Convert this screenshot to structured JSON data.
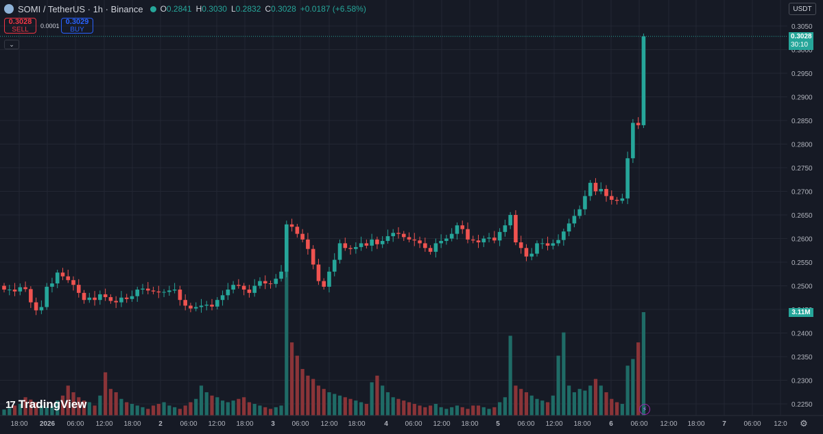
{
  "header": {
    "symbol": "SOMI / TetherUS · 1h · Binance",
    "ohlc": [
      {
        "k": "O",
        "v": "0.2841"
      },
      {
        "k": "H",
        "v": "0.3030"
      },
      {
        "k": "L",
        "v": "0.2832"
      },
      {
        "k": "C",
        "v": "0.3028"
      }
    ],
    "change": "+0.0187 (+6.58%)"
  },
  "trade": {
    "sell_price": "0.3028",
    "sell_label": "SELL",
    "buy_price": "0.3029",
    "buy_label": "BUY",
    "spread": "0.0001"
  },
  "currency": "USDT",
  "price_tag": {
    "price": "0.3028",
    "countdown": "30:10"
  },
  "volume_tag": "3.11M",
  "brand": "TradingView",
  "colors": {
    "up": "#26a69a",
    "down": "#ef5350",
    "vol_up": "#1f6b66",
    "vol_down": "#8a3438",
    "grid": "#232733",
    "text": "#b2b5be"
  },
  "chart_data": {
    "type": "candlestick",
    "interval": "1h",
    "y_ticks": [
      "0.3050",
      "0.3000",
      "0.2950",
      "0.2900",
      "0.2850",
      "0.2800",
      "0.2750",
      "0.2700",
      "0.2650",
      "0.2600",
      "0.2550",
      "0.2500",
      "0.2450",
      "0.2400",
      "0.2350",
      "0.2300",
      "0.2250"
    ],
    "ylim": [
      0.2225,
      0.3075
    ],
    "x_ticks": [
      "18:00",
      "2026",
      "06:00",
      "12:00",
      "18:00",
      "2",
      "06:00",
      "12:00",
      "18:00",
      "3",
      "06:00",
      "12:00",
      "18:00",
      "4",
      "06:00",
      "12:00",
      "18:00",
      "5",
      "06:00",
      "12:00",
      "18:00",
      "6",
      "06:00",
      "12:00",
      "18:00",
      "7",
      "06:00",
      "12:0"
    ],
    "last_price": 0.3028,
    "closes": [
      0.2492,
      0.2492,
      0.2488,
      0.2497,
      0.2493,
      0.2465,
      0.2448,
      0.2455,
      0.2498,
      0.2505,
      0.2528,
      0.252,
      0.2512,
      0.2502,
      0.2485,
      0.247,
      0.2475,
      0.247,
      0.2482,
      0.2476,
      0.2468,
      0.2465,
      0.2475,
      0.2472,
      0.2478,
      0.2492,
      0.2494,
      0.249,
      0.2488,
      0.2486,
      0.2487,
      0.249,
      0.2492,
      0.247,
      0.2458,
      0.2452,
      0.2455,
      0.2458,
      0.246,
      0.2456,
      0.247,
      0.248,
      0.2492,
      0.2502,
      0.25,
      0.2492,
      0.2485,
      0.25,
      0.251,
      0.2505,
      0.2504,
      0.2515,
      0.253,
      0.263,
      0.2625,
      0.261,
      0.2598,
      0.2578,
      0.2545,
      0.251,
      0.2498,
      0.253,
      0.2555,
      0.259,
      0.258,
      0.2578,
      0.2582,
      0.259,
      0.2585,
      0.2598,
      0.2588,
      0.2595,
      0.2605,
      0.2612,
      0.261,
      0.2603,
      0.2598,
      0.2596,
      0.259,
      0.258,
      0.2572,
      0.259,
      0.2595,
      0.26,
      0.261,
      0.2628,
      0.262,
      0.2598,
      0.2596,
      0.2592,
      0.26,
      0.2602,
      0.2596,
      0.2614,
      0.2628,
      0.265,
      0.2592,
      0.258,
      0.2562,
      0.2568,
      0.259,
      0.259,
      0.2585,
      0.259,
      0.2597,
      0.2615,
      0.2632,
      0.2648,
      0.2662,
      0.269,
      0.2718,
      0.27,
      0.2705,
      0.269,
      0.2682,
      0.268,
      0.2685,
      0.277,
      0.2845,
      0.284,
      0.3028
    ],
    "volumes_M": [
      0.18,
      0.22,
      0.3,
      0.35,
      0.55,
      0.48,
      0.4,
      0.3,
      0.25,
      0.28,
      0.45,
      0.6,
      0.9,
      0.7,
      0.55,
      0.45,
      0.4,
      0.3,
      0.6,
      1.3,
      0.8,
      0.7,
      0.5,
      0.4,
      0.35,
      0.3,
      0.25,
      0.2,
      0.3,
      0.35,
      0.4,
      0.3,
      0.25,
      0.2,
      0.3,
      0.4,
      0.5,
      0.9,
      0.7,
      0.6,
      0.55,
      0.45,
      0.4,
      0.45,
      0.5,
      0.55,
      0.4,
      0.35,
      0.3,
      0.25,
      0.2,
      0.25,
      0.3,
      4.8,
      2.2,
      1.8,
      1.4,
      1.2,
      1.1,
      0.9,
      0.8,
      0.7,
      0.65,
      0.6,
      0.55,
      0.5,
      0.45,
      0.4,
      0.35,
      1.0,
      1.2,
      0.9,
      0.7,
      0.55,
      0.5,
      0.45,
      0.4,
      0.35,
      0.3,
      0.25,
      0.3,
      0.35,
      0.25,
      0.2,
      0.25,
      0.3,
      0.25,
      0.2,
      0.3,
      0.3,
      0.25,
      0.2,
      0.25,
      0.4,
      0.55,
      2.4,
      0.9,
      0.8,
      0.7,
      0.6,
      0.5,
      0.45,
      0.4,
      0.6,
      1.8,
      2.5,
      0.9,
      0.7,
      0.8,
      0.75,
      0.9,
      1.1,
      0.9,
      0.7,
      0.5,
      0.4,
      0.35,
      1.5,
      1.7,
      2.2,
      3.11
    ],
    "volume_ylim": [
      0,
      5.0
    ]
  }
}
